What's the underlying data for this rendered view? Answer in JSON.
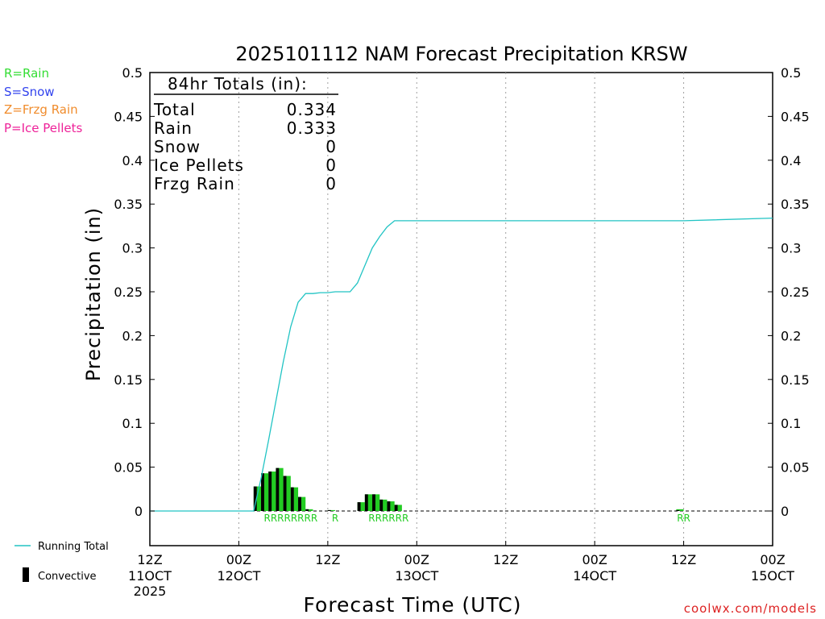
{
  "chart_data": {
    "type": "bar",
    "title": "2025101112 NAM Forecast Precipitation KRSW",
    "xlabel": "Forecast Time (UTC)",
    "ylabel": "Precipitation (in)",
    "ylim": [
      0,
      0.5
    ],
    "xlim_hours": [
      0,
      84
    ],
    "y_ticks": [
      0,
      0.05,
      0.1,
      0.15,
      0.2,
      0.25,
      0.3,
      0.35,
      0.4,
      0.45,
      0.5
    ],
    "y_tick_labels": [
      "0",
      "0.05",
      "0.1",
      "0.15",
      "0.2",
      "0.25",
      "0.3",
      "0.35",
      "0.4",
      "0.45",
      "0.5"
    ],
    "x_ticks": [
      {
        "hour": 0,
        "line1": "12Z",
        "line2": "11OCT",
        "line3": "2025"
      },
      {
        "hour": 12,
        "line1": "00Z",
        "line2": "12OCT",
        "line3": ""
      },
      {
        "hour": 24,
        "line1": "12Z",
        "line2": "",
        "line3": ""
      },
      {
        "hour": 36,
        "line1": "00Z",
        "line2": "13OCT",
        "line3": ""
      },
      {
        "hour": 48,
        "line1": "12Z",
        "line2": "",
        "line3": ""
      },
      {
        "hour": 60,
        "line1": "00Z",
        "line2": "14OCT",
        "line3": ""
      },
      {
        "hour": 72,
        "line1": "12Z",
        "line2": "",
        "line3": ""
      },
      {
        "hour": 84,
        "line1": "00Z",
        "line2": "15OCT",
        "line3": ""
      }
    ],
    "precip_bars": [
      {
        "hour": 15,
        "total": 0.028,
        "convective": 0.028
      },
      {
        "hour": 16,
        "total": 0.043,
        "convective": 0.043
      },
      {
        "hour": 17,
        "total": 0.045,
        "convective": 0.045
      },
      {
        "hour": 18,
        "total": 0.049,
        "convective": 0.049
      },
      {
        "hour": 19,
        "total": 0.04,
        "convective": 0.04
      },
      {
        "hour": 20,
        "total": 0.027,
        "convective": 0.027
      },
      {
        "hour": 21,
        "total": 0.016,
        "convective": 0.016
      },
      {
        "hour": 22,
        "total": 0.002,
        "convective": 0.002
      },
      {
        "hour": 25,
        "total": 0.001,
        "convective": 0.001
      },
      {
        "hour": 29,
        "total": 0.01,
        "convective": 0.01
      },
      {
        "hour": 30,
        "total": 0.019,
        "convective": 0.019
      },
      {
        "hour": 31,
        "total": 0.019,
        "convective": 0.019
      },
      {
        "hour": 32,
        "total": 0.013,
        "convective": 0.013
      },
      {
        "hour": 33,
        "total": 0.011,
        "convective": 0.011
      },
      {
        "hour": 34,
        "total": 0.007,
        "convective": 0.007
      },
      {
        "hour": 72,
        "total": 0.002,
        "convective": 0.001
      }
    ],
    "running_total": {
      "name": "Running Total",
      "hours": [
        0,
        14,
        15,
        16,
        17,
        18,
        19,
        20,
        21,
        22,
        23,
        24,
        25,
        26,
        27,
        28,
        29,
        30,
        31,
        32,
        33,
        34,
        35,
        36,
        72,
        84
      ],
      "values": [
        0,
        0,
        0.037,
        0.08,
        0.125,
        0.17,
        0.21,
        0.238,
        0.248,
        0.248,
        0.249,
        0.249,
        0.25,
        0.25,
        0.25,
        0.26,
        0.28,
        0.3,
        0.313,
        0.324,
        0.331,
        0.331,
        0.331,
        0.331,
        0.331,
        0.334
      ]
    },
    "precip_type_labels": [
      {
        "text": "RRRRRRRR",
        "hour_center": 19.0
      },
      {
        "text": "R",
        "hour_center": 25.0
      },
      {
        "text": "RRRRRR",
        "hour_center": 32.2
      },
      {
        "text": "RR",
        "hour_center": 72.0
      }
    ],
    "totals_box": {
      "header": "84hr Totals (in):",
      "rows": [
        {
          "label": "Total",
          "value": "0.334"
        },
        {
          "label": "Rain",
          "value": "0.333"
        },
        {
          "label": "Snow",
          "value": "0"
        },
        {
          "label": "Ice Pellets",
          "value": "0"
        },
        {
          "label": "Frzg Rain",
          "value": "0"
        }
      ]
    },
    "type_legend": [
      {
        "text": "R=Rain",
        "color": "#33dd33"
      },
      {
        "text": "S=Snow",
        "color": "#3344ee"
      },
      {
        "text": "Z=Frzg Rain",
        "color": "#f08c2c"
      },
      {
        "text": "P=Ice Pellets",
        "color": "#ee2299"
      }
    ],
    "series_legend": [
      {
        "text": "Running Total",
        "color": "#22c4c4"
      },
      {
        "text": "Convective",
        "color": "#000000"
      }
    ],
    "credit": "coolwx.com/models",
    "colors": {
      "rain_bar": "#22cc22",
      "convective": "#000000",
      "running_total": "#22c4c4",
      "credit": "#dd2222",
      "grid": "#a0a0a0"
    }
  }
}
